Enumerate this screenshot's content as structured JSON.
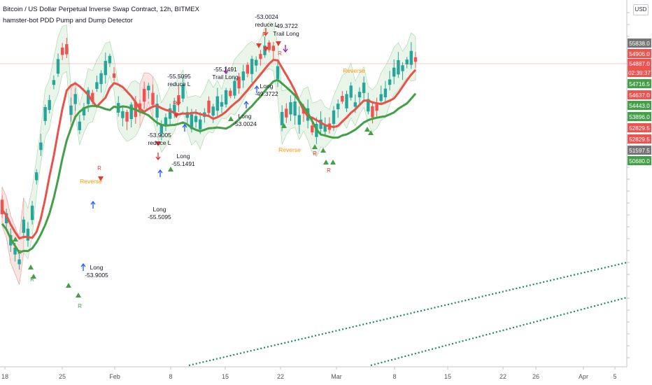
{
  "header": {
    "title": "Bitcoin / US Dollar Perpetual Inverse Swap Contract, 12h, BITMEX",
    "indicator": "hamster-bot PDD Pump and Dump Detector"
  },
  "currency_button": "USD",
  "colors": {
    "up": "#26a69a",
    "down": "#ef5350",
    "ema_red": "#e8524a",
    "ema_green": "#43a047",
    "band_green": "#e3f2e4",
    "band_red": "#fbe1e1",
    "axis_text": "#555",
    "signal_long": "#2962ff",
    "signal_short": "#e53935",
    "trail": "#9c27b0",
    "reverse": "#ff9800",
    "dotted": "#1b8a5a"
  },
  "chart_data": {
    "type": "candlestick",
    "symbol": "Bitcoin / US Dollar Perpetual Inverse Swap Contract",
    "interval": "12h",
    "exchange": "BITMEX",
    "y_axis_side": "right",
    "x_tick_labels": [
      "18",
      "25",
      "Feb",
      "8",
      "15",
      "22",
      "Mar",
      "8",
      "15",
      "22",
      "26",
      "Apr",
      "5"
    ],
    "price_labels": [
      {
        "value": "55838.0",
        "color": "#757575"
      },
      {
        "value": "54906.0",
        "color": "#ef5350"
      },
      {
        "value": "54887.0",
        "color": "#ef5350"
      },
      {
        "value": "02:39:37",
        "color": "#ef5350"
      },
      {
        "value": "54716.5",
        "color": "#43a047"
      },
      {
        "value": "54637.0",
        "color": "#ef5350"
      },
      {
        "value": "54443.0",
        "color": "#43a047"
      },
      {
        "value": "53896.0",
        "color": "#43a047"
      },
      {
        "value": "52829.5",
        "color": "#ef5350"
      },
      {
        "value": "52829.5",
        "color": "#ef5350"
      },
      {
        "value": "51597.5",
        "color": "#757575"
      },
      {
        "value": "50680.0",
        "color": "#43a047"
      }
    ],
    "current_price": "54887.0",
    "countdown": "02:39:37",
    "annotations": [
      {
        "lines": [
          "Long",
          "-53.9005"
        ],
        "kind": "long"
      },
      {
        "lines": [
          "Long",
          "-55.5095"
        ],
        "kind": "long"
      },
      {
        "lines": [
          "-53.9005",
          "reduce L"
        ],
        "kind": "reduce"
      },
      {
        "lines": [
          "Long",
          "-55.1491"
        ],
        "kind": "long"
      },
      {
        "lines": [
          "-55.5095",
          "reduce L"
        ],
        "kind": "reduce"
      },
      {
        "lines": [
          "-55.1491",
          "Trail Long"
        ],
        "kind": "trail"
      },
      {
        "lines": [
          "Long",
          "-53.0024"
        ],
        "kind": "long"
      },
      {
        "lines": [
          "Long",
          "-49.3722"
        ],
        "kind": "long"
      },
      {
        "lines": [
          "-53.0024",
          "reduce L"
        ],
        "kind": "reduce"
      },
      {
        "lines": [
          "-49.3722",
          "Trail Long"
        ],
        "kind": "trail"
      },
      {
        "lines": [
          "Reverse"
        ],
        "kind": "reverse"
      },
      {
        "lines": [
          "Reverse"
        ],
        "kind": "reverse"
      },
      {
        "lines": [
          "Reverse"
        ],
        "kind": "reverse"
      }
    ]
  }
}
